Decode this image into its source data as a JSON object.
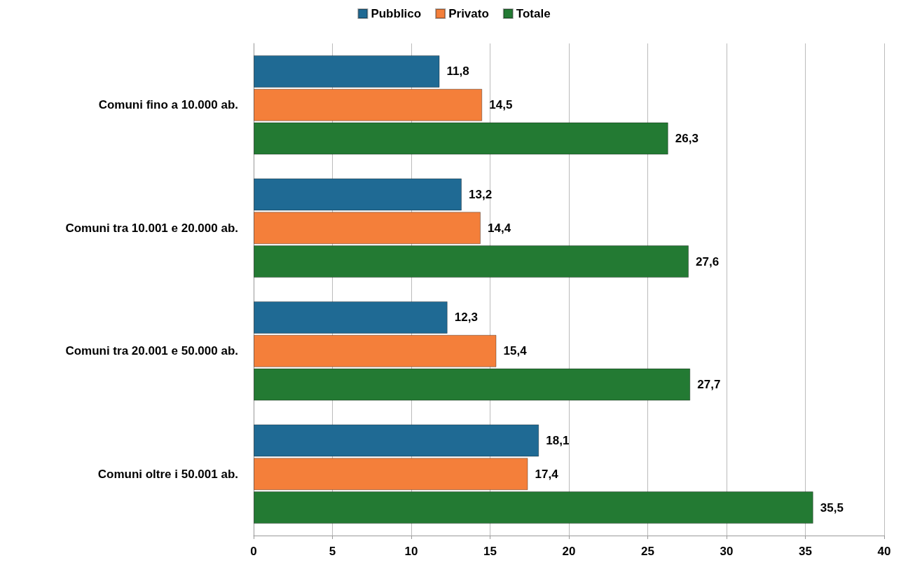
{
  "chart_data": {
    "type": "bar",
    "orientation": "horizontal",
    "categories": [
      "Comuni fino a 10.000 ab.",
      "Comuni tra 10.001 e 20.000 ab.",
      "Comuni tra 20.001 e 50.000 ab.",
      "Comuni oltre i 50.001 ab."
    ],
    "series": [
      {
        "name": "Pubblico",
        "color": "#1f6a94",
        "values": [
          11.8,
          13.2,
          12.3,
          18.1
        ],
        "value_labels": [
          "11,8",
          "13,2",
          "12,3",
          "18,1"
        ]
      },
      {
        "name": "Privato",
        "color": "#f47f3a",
        "values": [
          14.5,
          14.4,
          15.4,
          17.4
        ],
        "value_labels": [
          "14,5",
          "14,4",
          "15,4",
          "17,4"
        ]
      },
      {
        "name": "Totale",
        "color": "#237a33",
        "values": [
          26.3,
          27.6,
          27.7,
          35.5
        ],
        "value_labels": [
          "26,3",
          "27,6",
          "27,7",
          "35,5"
        ]
      }
    ],
    "xlim": [
      0,
      40
    ],
    "xticks": [
      0,
      5,
      10,
      15,
      20,
      25,
      30,
      35,
      40
    ],
    "grid": "x",
    "legend": "top"
  }
}
